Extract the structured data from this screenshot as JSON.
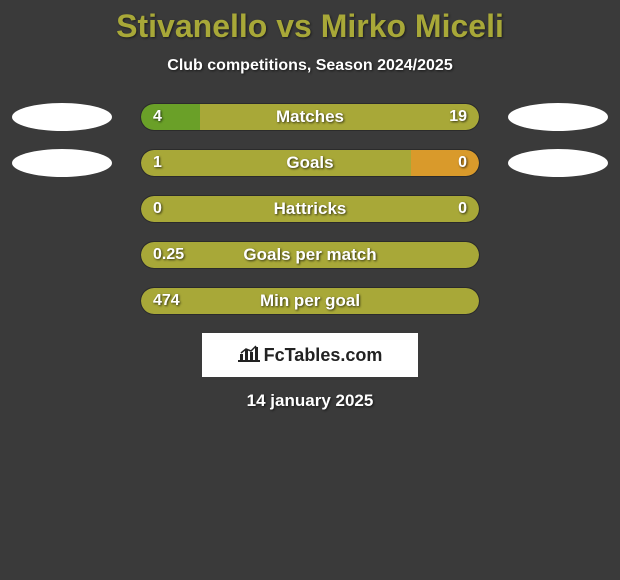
{
  "title": "Stivanello vs Mirko Miceli",
  "subtitle": "Club competitions, Season 2024/2025",
  "colors": {
    "bar_olive": "#a8a838",
    "bar_green": "#6aa028",
    "bar_orange": "#d99a2b",
    "background": "#3a3a3a",
    "ellipse": "#ffffff",
    "logo_bg": "#ffffff",
    "text_white": "#ffffff",
    "title_color": "#a8a838"
  },
  "rows": [
    {
      "label": "Matches",
      "left_val": "4",
      "right_val": "19",
      "left_pct": 17.4,
      "right_pct": 82.6,
      "left_color": "#6aa028",
      "right_color": "#a8a838",
      "show_ellipses": true
    },
    {
      "label": "Goals",
      "left_val": "1",
      "right_val": "0",
      "left_pct": 80,
      "right_pct": 20,
      "left_color": "#a8a838",
      "right_color": "#d99a2b",
      "show_ellipses": true
    },
    {
      "label": "Hattricks",
      "left_val": "0",
      "right_val": "0",
      "left_pct": 100,
      "right_pct": 0,
      "left_color": "#a8a838",
      "right_color": "#a8a838",
      "show_ellipses": false
    },
    {
      "label": "Goals per match",
      "left_val": "0.25",
      "right_val": "",
      "left_pct": 100,
      "right_pct": 0,
      "left_color": "#a8a838",
      "right_color": "#a8a838",
      "show_ellipses": false
    },
    {
      "label": "Min per goal",
      "left_val": "474",
      "right_val": "",
      "left_pct": 100,
      "right_pct": 0,
      "left_color": "#a8a838",
      "right_color": "#a8a838",
      "show_ellipses": false
    }
  ],
  "logo_text": "FcTables.com",
  "date": "14 january 2025"
}
